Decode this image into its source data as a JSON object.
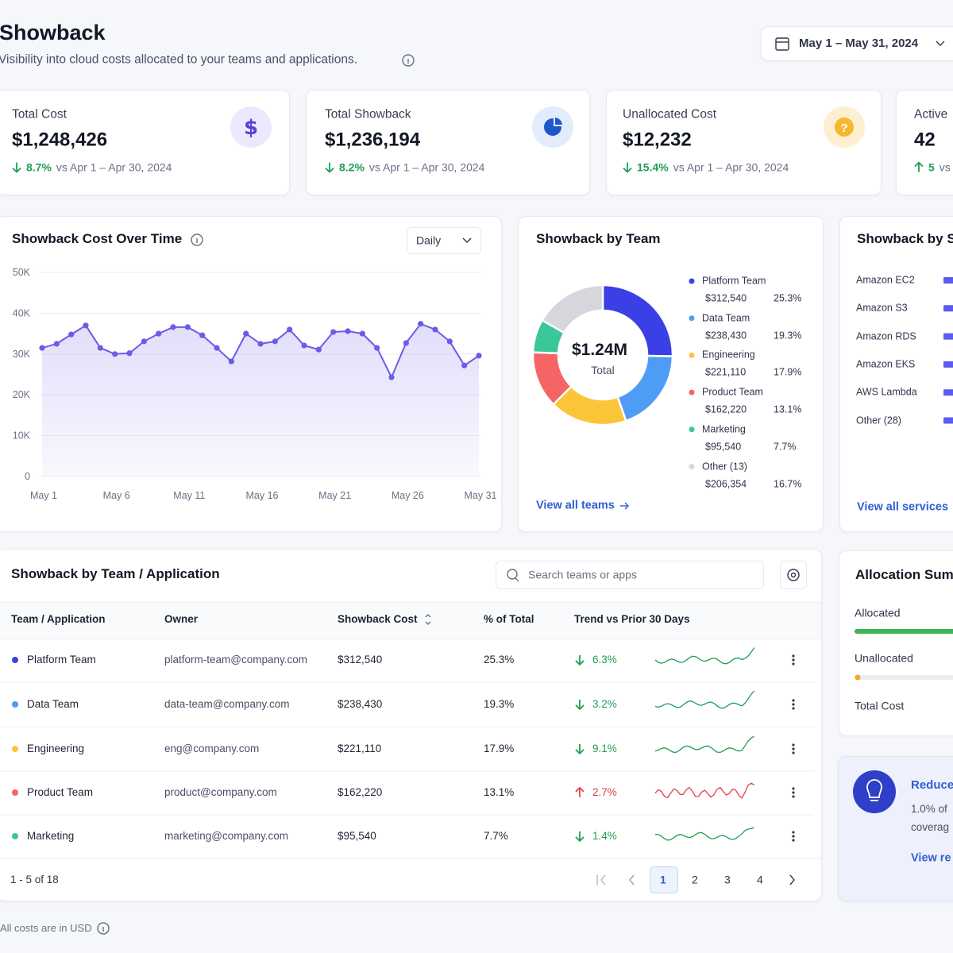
{
  "header": {
    "title": "Showback",
    "subtitle": "Visibility into cloud costs allocated to your teams and applications.",
    "date_range": "May 1 – May 31, 2024"
  },
  "kpis": [
    {
      "label": "Total Cost",
      "value": "$1,248,426",
      "change": "8.7%",
      "direction": "down",
      "comparison": "vs Apr 1 – Apr 30, 2024"
    },
    {
      "label": "Total Showback",
      "value": "$1,236,194",
      "change": "8.2%",
      "direction": "down",
      "comparison": "vs Apr 1 – Apr 30, 2024"
    },
    {
      "label": "Unallocated Cost",
      "value": "$12,232",
      "change": "15.4%",
      "direction": "down",
      "comparison": "vs Apr 1 – Apr 30, 2024"
    },
    {
      "label": "Active",
      "value": "42",
      "change": "5",
      "direction": "up",
      "comparison": "vs"
    }
  ],
  "cost_chart": {
    "type": "line",
    "title": "Showback Cost Over Time",
    "granularity": "Daily",
    "color": "#6b5ce7",
    "categories": [
      "May 1",
      null,
      null,
      null,
      null,
      "May 6",
      null,
      null,
      null,
      null,
      "May 11",
      null,
      null,
      null,
      null,
      "May 16",
      null,
      null,
      null,
      null,
      "May 21",
      null,
      null,
      null,
      null,
      "May 26",
      null,
      null,
      null,
      null,
      "May 31"
    ],
    "values": [
      31500,
      32500,
      34800,
      37000,
      31500,
      30000,
      30200,
      33100,
      35000,
      36600,
      36600,
      34600,
      31500,
      28200,
      35000,
      32500,
      33100,
      36000,
      32100,
      31100,
      35400,
      35600,
      35000,
      31500,
      24300,
      32700,
      37400,
      36000,
      33100,
      27200,
      29600
    ],
    "ylim": [
      0,
      50000
    ],
    "yticks": [
      0,
      {
        "value": 10000,
        "label": "10K"
      },
      {
        "value": 20000,
        "label": "20K"
      },
      {
        "value": 30000,
        "label": "30K"
      },
      {
        "value": 40000,
        "label": "40K"
      },
      {
        "value": 50000,
        "label": "50K"
      }
    ],
    "grid": true
  },
  "team_chart": {
    "type": "donut",
    "title": "Showback by Team",
    "total": "$1.24M",
    "total_label": "Total",
    "teams": [
      {
        "name": "Platform Team",
        "amount": "$312,540",
        "share": {
          "value": 25.3,
          "label": "25.3%"
        },
        "color": "#3b3fe6"
      },
      {
        "name": "Data Team",
        "amount": "$238,430",
        "share": {
          "value": 19.3,
          "label": "19.3%"
        },
        "color": "#4f9cf7"
      },
      {
        "name": "Engineering",
        "amount": "$221,110",
        "share": {
          "value": 17.9,
          "label": "17.9%"
        },
        "color": "#fbc53a"
      },
      {
        "name": "Product Team",
        "amount": "$162,220",
        "share": {
          "value": 13.1,
          "label": "13.1%"
        },
        "color": "#f56565"
      },
      {
        "name": "Marketing",
        "amount": "$95,540",
        "share": {
          "value": 7.7,
          "label": "7.7%"
        },
        "color": "#3cc79a"
      },
      {
        "name": "Other (13)",
        "amount": "$206,354",
        "share": {
          "value": 16.7,
          "label": "16.7%"
        },
        "color": "#d5d7dd"
      }
    ],
    "link": "View all teams"
  },
  "services": {
    "title": "Showback by S",
    "items": [
      "Amazon EC2",
      "Amazon S3",
      "Amazon RDS",
      "Amazon EKS",
      "AWS Lambda",
      "Other (28)"
    ],
    "link": "View all services"
  },
  "table": {
    "title": "Showback by Team / Application",
    "search_placeholder": "Search teams or apps",
    "columns": [
      "Team / Application",
      "Owner",
      "Showback Cost",
      "% of Total",
      "Trend vs Prior 30 Days"
    ],
    "rows": [
      {
        "team": "Platform Team",
        "color": "#3b3fe6",
        "owner": "platform-team@company.com",
        "cost": "$312,540",
        "share": "25.3%",
        "trend": "6.3%",
        "direction": "down"
      },
      {
        "team": "Data Team",
        "color": "#4f9cf7",
        "owner": "data-team@company.com",
        "cost": "$238,430",
        "share": "19.3%",
        "trend": "3.2%",
        "direction": "down"
      },
      {
        "team": "Engineering",
        "color": "#fbc53a",
        "owner": "eng@company.com",
        "cost": "$221,110",
        "share": "17.9%",
        "trend": "9.1%",
        "direction": "down"
      },
      {
        "team": "Product Team",
        "color": "#f56565",
        "owner": "product@company.com",
        "cost": "$162,220",
        "share": "13.1%",
        "trend": "2.7%",
        "direction": "up"
      },
      {
        "team": "Marketing",
        "color": "#3cc79a",
        "owner": "marketing@company.com",
        "cost": "$95,540",
        "share": "7.7%",
        "trend": "1.4%",
        "direction": "down"
      }
    ],
    "range": "1 - 5 of 18",
    "pages": [
      1,
      2,
      3,
      4
    ]
  },
  "allocation": {
    "title": "Allocation Sum",
    "items": [
      "Allocated",
      "Unallocated",
      "Total Cost"
    ]
  },
  "tip": {
    "title": "Reduce",
    "lines": [
      "1.0% of",
      "coverag"
    ],
    "link": "View re"
  },
  "footer": {
    "note": "All costs are in USD"
  }
}
